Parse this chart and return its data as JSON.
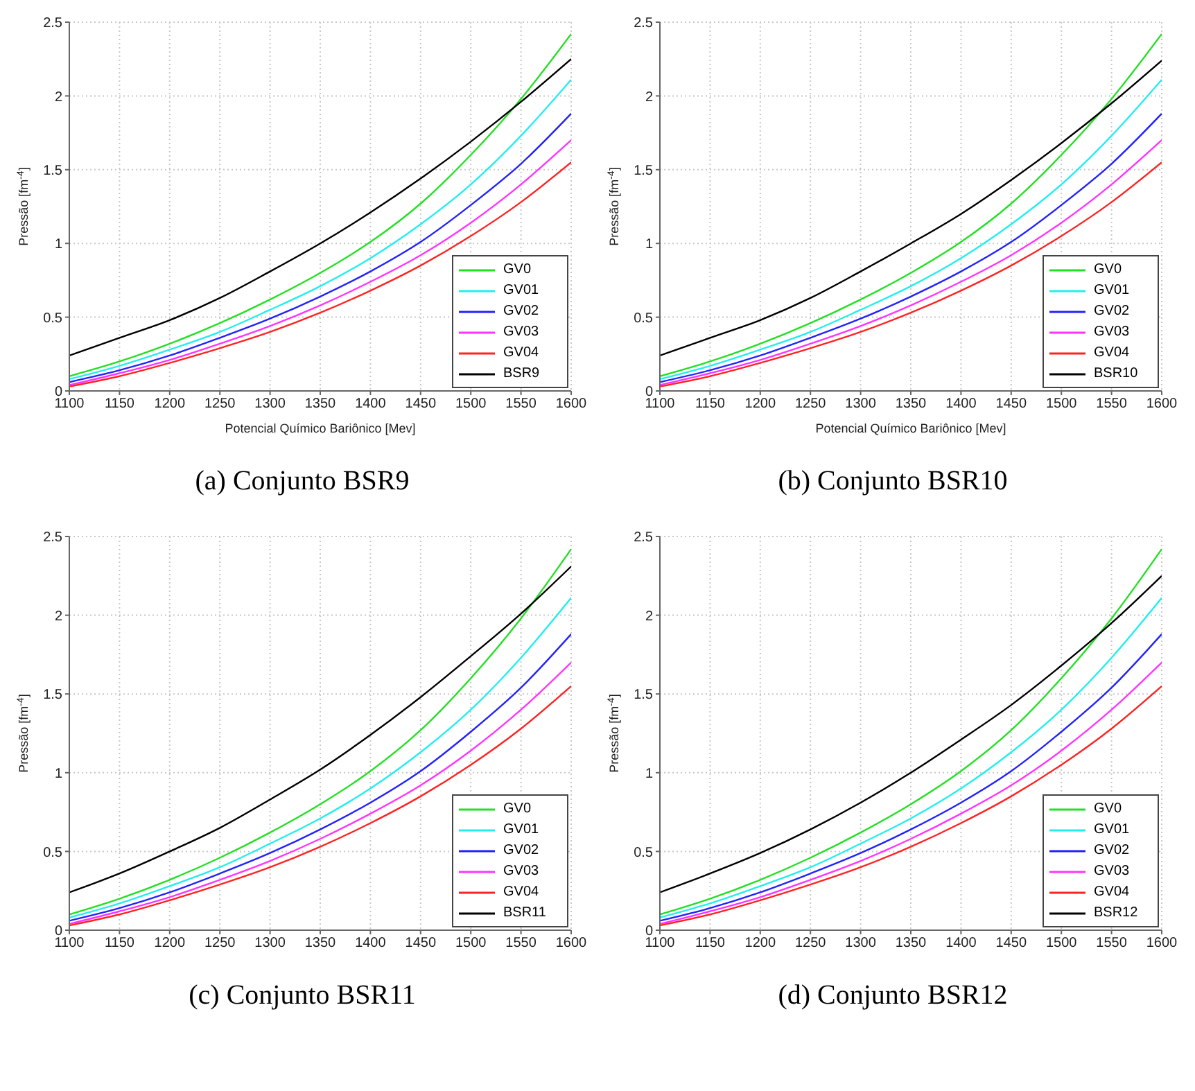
{
  "chart_data": [
    {
      "type": "line",
      "xlabel": "Potencial Químico Bariônico [Mev]",
      "ylabel": "Pressão [fm$^{-4}$]",
      "annotations": [
        "(a) Conjunto BSR9"
      ],
      "x": [
        1100,
        1150,
        1200,
        1250,
        1300,
        1350,
        1400,
        1450,
        1500,
        1550,
        1600
      ],
      "xlim": [
        1100,
        1600
      ],
      "xticks": [
        1100,
        1150,
        1200,
        1250,
        1300,
        1350,
        1400,
        1450,
        1500,
        1550,
        1600
      ],
      "ylim": [
        0,
        2.5
      ],
      "yticks": [
        0,
        0.5,
        1,
        1.5,
        2,
        2.5
      ],
      "grid": true,
      "legend": "bottom right",
      "marker": "none",
      "line_style": "solid",
      "series": [
        {
          "name": "GV0",
          "color": "#22e022",
          "values": [
            0.1,
            0.2,
            0.32,
            0.46,
            0.62,
            0.8,
            1.01,
            1.27,
            1.6,
            1.98,
            2.42
          ]
        },
        {
          "name": "GV01",
          "color": "#22eeee",
          "values": [
            0.08,
            0.17,
            0.28,
            0.4,
            0.55,
            0.71,
            0.9,
            1.13,
            1.4,
            1.73,
            2.11
          ]
        },
        {
          "name": "GV02",
          "color": "#2222ff",
          "values": [
            0.06,
            0.14,
            0.24,
            0.36,
            0.49,
            0.64,
            0.81,
            1.01,
            1.26,
            1.54,
            1.88
          ]
        },
        {
          "name": "GV03",
          "color": "#ff33ff",
          "values": [
            0.04,
            0.12,
            0.21,
            0.32,
            0.44,
            0.58,
            0.74,
            0.92,
            1.14,
            1.4,
            1.7
          ]
        },
        {
          "name": "GV04",
          "color": "#ff2222",
          "values": [
            0.03,
            0.1,
            0.19,
            0.29,
            0.4,
            0.53,
            0.68,
            0.85,
            1.05,
            1.28,
            1.55
          ]
        },
        {
          "name": "BSR9",
          "color": "#000000",
          "values": [
            0.24,
            0.36,
            0.48,
            0.63,
            0.81,
            1.0,
            1.21,
            1.44,
            1.69,
            1.96,
            2.25
          ]
        }
      ]
    },
    {
      "type": "line",
      "xlabel": "Potencial Químico Bariônico [Mev]",
      "ylabel": "Pressão [fm$^{-4}$]",
      "annotations": [
        "(b) Conjunto BSR10"
      ],
      "x": [
        1100,
        1150,
        1200,
        1250,
        1300,
        1350,
        1400,
        1450,
        1500,
        1550,
        1600
      ],
      "xlim": [
        1100,
        1600
      ],
      "xticks": [
        1100,
        1150,
        1200,
        1250,
        1300,
        1350,
        1400,
        1450,
        1500,
        1550,
        1600
      ],
      "ylim": [
        0,
        2.5
      ],
      "yticks": [
        0,
        0.5,
        1,
        1.5,
        2,
        2.5
      ],
      "grid": true,
      "legend": "bottom right",
      "marker": "none",
      "line_style": "solid",
      "series": [
        {
          "name": "GV0",
          "color": "#22e022",
          "values": [
            0.1,
            0.2,
            0.32,
            0.46,
            0.62,
            0.8,
            1.01,
            1.27,
            1.6,
            1.98,
            2.42
          ]
        },
        {
          "name": "GV01",
          "color": "#22eeee",
          "values": [
            0.08,
            0.17,
            0.28,
            0.4,
            0.55,
            0.71,
            0.9,
            1.13,
            1.4,
            1.73,
            2.11
          ]
        },
        {
          "name": "GV02",
          "color": "#2222ff",
          "values": [
            0.06,
            0.14,
            0.24,
            0.36,
            0.49,
            0.64,
            0.81,
            1.01,
            1.26,
            1.54,
            1.88
          ]
        },
        {
          "name": "GV03",
          "color": "#ff33ff",
          "values": [
            0.04,
            0.12,
            0.21,
            0.32,
            0.44,
            0.58,
            0.74,
            0.92,
            1.14,
            1.4,
            1.7
          ]
        },
        {
          "name": "GV04",
          "color": "#ff2222",
          "values": [
            0.03,
            0.1,
            0.19,
            0.29,
            0.4,
            0.53,
            0.68,
            0.85,
            1.05,
            1.28,
            1.55
          ]
        },
        {
          "name": "BSR10",
          "color": "#000000",
          "values": [
            0.24,
            0.36,
            0.48,
            0.63,
            0.81,
            1.0,
            1.2,
            1.43,
            1.68,
            1.95,
            2.24
          ]
        }
      ]
    },
    {
      "type": "line",
      "ylabel": "Pressão [fm$^{-4}$]",
      "annotations": [
        "(c) Conjunto BSR11"
      ],
      "x": [
        1100,
        1150,
        1200,
        1250,
        1300,
        1350,
        1400,
        1450,
        1500,
        1550,
        1600
      ],
      "xlim": [
        1100,
        1600
      ],
      "xticks": [
        1100,
        1150,
        1200,
        1250,
        1300,
        1350,
        1400,
        1450,
        1500,
        1550,
        1600
      ],
      "ylim": [
        0,
        2.5
      ],
      "yticks": [
        0,
        0.5,
        1,
        1.5,
        2,
        2.5
      ],
      "grid": true,
      "legend": "bottom right",
      "marker": "none",
      "line_style": "solid",
      "series": [
        {
          "name": "GV0",
          "color": "#22e022",
          "values": [
            0.1,
            0.2,
            0.32,
            0.46,
            0.62,
            0.8,
            1.01,
            1.27,
            1.6,
            1.98,
            2.42
          ]
        },
        {
          "name": "GV01",
          "color": "#22eeee",
          "values": [
            0.08,
            0.17,
            0.28,
            0.4,
            0.55,
            0.71,
            0.9,
            1.13,
            1.4,
            1.73,
            2.11
          ]
        },
        {
          "name": "GV02",
          "color": "#2222ff",
          "values": [
            0.06,
            0.14,
            0.24,
            0.36,
            0.49,
            0.64,
            0.81,
            1.01,
            1.26,
            1.54,
            1.88
          ]
        },
        {
          "name": "GV03",
          "color": "#ff33ff",
          "values": [
            0.04,
            0.12,
            0.21,
            0.32,
            0.44,
            0.58,
            0.74,
            0.92,
            1.14,
            1.4,
            1.7
          ]
        },
        {
          "name": "GV04",
          "color": "#ff2222",
          "values": [
            0.03,
            0.1,
            0.19,
            0.29,
            0.4,
            0.53,
            0.68,
            0.85,
            1.05,
            1.28,
            1.55
          ]
        },
        {
          "name": "BSR11",
          "color": "#000000",
          "values": [
            0.24,
            0.36,
            0.5,
            0.65,
            0.83,
            1.02,
            1.24,
            1.48,
            1.74,
            2.01,
            2.31
          ]
        }
      ]
    },
    {
      "type": "line",
      "ylabel": "Pressão [fm$^{-4}$]",
      "annotations": [
        "(d) Conjunto BSR12"
      ],
      "x": [
        1100,
        1150,
        1200,
        1250,
        1300,
        1350,
        1400,
        1450,
        1500,
        1550,
        1600
      ],
      "xlim": [
        1100,
        1600
      ],
      "xticks": [
        1100,
        1150,
        1200,
        1250,
        1300,
        1350,
        1400,
        1450,
        1500,
        1550,
        1600
      ],
      "ylim": [
        0,
        2.5
      ],
      "yticks": [
        0,
        0.5,
        1,
        1.5,
        2,
        2.5
      ],
      "grid": true,
      "legend": "bottom right",
      "marker": "none",
      "line_style": "solid",
      "series": [
        {
          "name": "GV0",
          "color": "#22e022",
          "values": [
            0.1,
            0.2,
            0.32,
            0.46,
            0.62,
            0.8,
            1.01,
            1.27,
            1.6,
            1.98,
            2.42
          ]
        },
        {
          "name": "GV01",
          "color": "#22eeee",
          "values": [
            0.08,
            0.17,
            0.28,
            0.4,
            0.55,
            0.71,
            0.9,
            1.13,
            1.4,
            1.73,
            2.11
          ]
        },
        {
          "name": "GV02",
          "color": "#2222ff",
          "values": [
            0.06,
            0.14,
            0.24,
            0.36,
            0.49,
            0.64,
            0.81,
            1.01,
            1.26,
            1.54,
            1.88
          ]
        },
        {
          "name": "GV03",
          "color": "#ff33ff",
          "values": [
            0.04,
            0.12,
            0.21,
            0.32,
            0.44,
            0.58,
            0.74,
            0.92,
            1.14,
            1.4,
            1.7
          ]
        },
        {
          "name": "GV04",
          "color": "#ff2222",
          "values": [
            0.03,
            0.1,
            0.19,
            0.29,
            0.4,
            0.53,
            0.68,
            0.85,
            1.05,
            1.28,
            1.55
          ]
        },
        {
          "name": "BSR12",
          "color": "#000000",
          "values": [
            0.24,
            0.36,
            0.49,
            0.64,
            0.81,
            1.0,
            1.21,
            1.43,
            1.68,
            1.95,
            2.25
          ]
        }
      ]
    }
  ]
}
